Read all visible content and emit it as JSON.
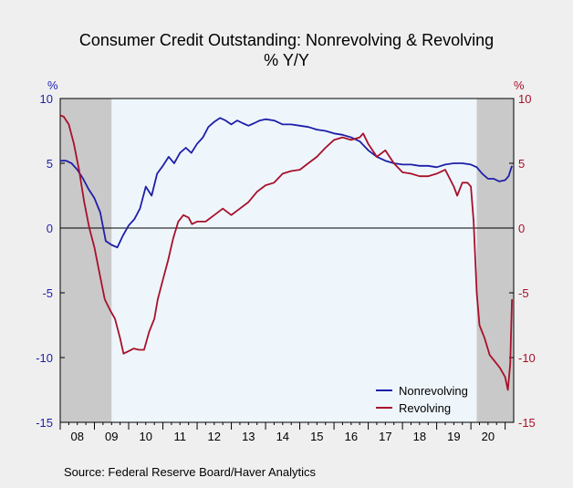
{
  "chart_data": {
    "type": "line",
    "title": "Consumer Credit Outstanding: Nonrevolving & Revolving",
    "subtitle": "% Y/Y",
    "ylabel_left": "%",
    "ylabel_right": "%",
    "ylim": [
      -15,
      10
    ],
    "yticks": [
      "10",
      "5",
      "0",
      "-5",
      "-10",
      "-15"
    ],
    "yticks_right": [
      "10",
      "5",
      "0",
      "-5",
      "-10",
      "-15"
    ],
    "xlim": [
      2008.0,
      2021.25
    ],
    "xticks": [
      "08",
      "09",
      "10",
      "11",
      "12",
      "13",
      "14",
      "15",
      "16",
      "17",
      "18",
      "19",
      "20"
    ],
    "recessions": [
      [
        2008.0,
        2009.5
      ],
      [
        2020.17,
        2021.25
      ]
    ],
    "grid": false,
    "legend_position": "bottom-right",
    "colors": {
      "nonrevolving": "#1f1fa8",
      "revolving": "#a8102a",
      "recession": "#c9c9c9",
      "plot_bg": "#eef6fc",
      "zero_line": "#000000"
    },
    "series": [
      {
        "name": "Nonrevolving",
        "x": [
          2008.0,
          2008.17,
          2008.33,
          2008.5,
          2008.67,
          2008.83,
          2009.0,
          2009.17,
          2009.33,
          2009.5,
          2009.67,
          2009.83,
          2010.0,
          2010.17,
          2010.33,
          2010.5,
          2010.67,
          2010.83,
          2011.0,
          2011.17,
          2011.33,
          2011.5,
          2011.67,
          2011.83,
          2012.0,
          2012.17,
          2012.33,
          2012.5,
          2012.67,
          2012.83,
          2013.0,
          2013.17,
          2013.33,
          2013.5,
          2013.67,
          2013.83,
          2014.0,
          2014.25,
          2014.5,
          2014.75,
          2015.0,
          2015.25,
          2015.5,
          2015.75,
          2016.0,
          2016.25,
          2016.5,
          2016.75,
          2017.0,
          2017.25,
          2017.5,
          2017.75,
          2018.0,
          2018.25,
          2018.5,
          2018.75,
          2019.0,
          2019.25,
          2019.5,
          2019.75,
          2020.0,
          2020.17,
          2020.33,
          2020.5,
          2020.67,
          2020.83,
          2021.0,
          2021.1,
          2021.2
        ],
        "values": [
          5.2,
          5.2,
          5.0,
          4.5,
          3.8,
          3.0,
          2.3,
          1.2,
          -1.0,
          -1.3,
          -1.5,
          -0.6,
          0.2,
          0.7,
          1.5,
          3.2,
          2.5,
          4.2,
          4.8,
          5.5,
          5.0,
          5.8,
          6.2,
          5.8,
          6.5,
          7.0,
          7.8,
          8.2,
          8.5,
          8.3,
          8.0,
          8.3,
          8.1,
          7.9,
          8.1,
          8.3,
          8.4,
          8.3,
          8.0,
          8.0,
          7.9,
          7.8,
          7.6,
          7.5,
          7.3,
          7.2,
          7.0,
          6.7,
          6.0,
          5.5,
          5.2,
          5.0,
          4.9,
          4.9,
          4.8,
          4.8,
          4.7,
          4.9,
          5.0,
          5.0,
          4.9,
          4.7,
          4.2,
          3.8,
          3.8,
          3.6,
          3.7,
          4.0,
          4.8
        ]
      },
      {
        "name": "Revolving",
        "x": [
          2008.0,
          2008.1,
          2008.25,
          2008.4,
          2008.55,
          2008.7,
          2008.85,
          2009.0,
          2009.15,
          2009.3,
          2009.45,
          2009.6,
          2009.75,
          2009.85,
          2010.0,
          2010.15,
          2010.3,
          2010.45,
          2010.6,
          2010.75,
          2010.85,
          2011.0,
          2011.15,
          2011.3,
          2011.45,
          2011.6,
          2011.75,
          2011.85,
          2012.0,
          2012.25,
          2012.5,
          2012.75,
          2013.0,
          2013.25,
          2013.5,
          2013.75,
          2014.0,
          2014.25,
          2014.5,
          2014.75,
          2015.0,
          2015.25,
          2015.5,
          2015.75,
          2016.0,
          2016.25,
          2016.5,
          2016.75,
          2016.85,
          2017.0,
          2017.25,
          2017.5,
          2017.75,
          2018.0,
          2018.25,
          2018.5,
          2018.75,
          2019.0,
          2019.25,
          2019.5,
          2019.6,
          2019.75,
          2019.9,
          2020.0,
          2020.08,
          2020.17,
          2020.25,
          2020.4,
          2020.55,
          2020.7,
          2020.85,
          2021.0,
          2021.08,
          2021.15,
          2021.2
        ],
        "values": [
          8.7,
          8.6,
          8.0,
          6.5,
          4.5,
          2.0,
          0.0,
          -1.5,
          -3.5,
          -5.5,
          -6.3,
          -7.0,
          -8.5,
          -9.7,
          -9.5,
          -9.3,
          -9.4,
          -9.4,
          -8.0,
          -7.0,
          -5.5,
          -4.0,
          -2.5,
          -0.8,
          0.5,
          1.0,
          0.8,
          0.3,
          0.5,
          0.5,
          1.0,
          1.5,
          1.0,
          1.5,
          2.0,
          2.8,
          3.3,
          3.5,
          4.2,
          4.4,
          4.5,
          5.0,
          5.5,
          6.2,
          6.8,
          7.0,
          6.8,
          7.0,
          7.3,
          6.5,
          5.5,
          6.0,
          5.0,
          4.3,
          4.2,
          4.0,
          4.0,
          4.2,
          4.5,
          3.2,
          2.5,
          3.5,
          3.5,
          3.2,
          0.5,
          -5.0,
          -7.5,
          -8.5,
          -9.8,
          -10.3,
          -10.8,
          -11.5,
          -12.5,
          -10.5,
          -5.5
        ]
      }
    ],
    "source": "Source:  Federal Reserve Board/Haver Analytics"
  }
}
